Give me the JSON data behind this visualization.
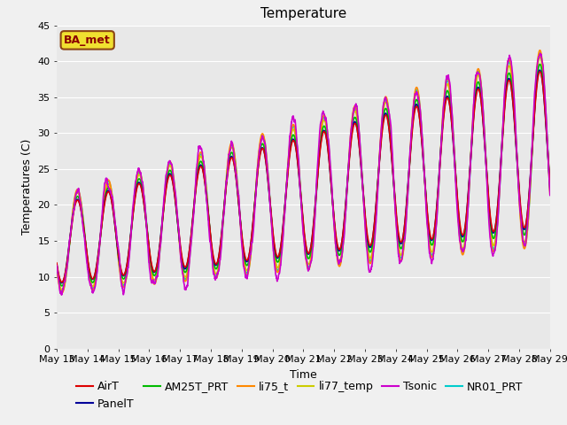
{
  "title": "Temperature",
  "xlabel": "Time",
  "ylabel": "Temperatures (C)",
  "ylim": [
    0,
    45
  ],
  "yticks": [
    0,
    5,
    10,
    15,
    20,
    25,
    30,
    35,
    40,
    45
  ],
  "n_days": 16,
  "start_day": 13,
  "series_names": [
    "AirT",
    "PanelT",
    "AM25T_PRT",
    "li75_t",
    "li77_temp",
    "Tsonic",
    "NR01_PRT"
  ],
  "series_colors": [
    "#dd0000",
    "#000099",
    "#00bb00",
    "#ff8800",
    "#cccc00",
    "#cc00cc",
    "#00cccc"
  ],
  "series_linewidths": [
    1.2,
    1.2,
    1.2,
    1.2,
    1.2,
    1.2,
    1.2
  ],
  "annotation_text": "BA_met",
  "background_color": "#f0f0f0",
  "plot_bg_color": "#e8e8e8",
  "title_fontsize": 11,
  "axis_label_fontsize": 9,
  "tick_fontsize": 8,
  "legend_fontsize": 9,
  "grid_color": "#ffffff",
  "legend_ncol_row1": 6,
  "legend_ncol_row2": 1
}
